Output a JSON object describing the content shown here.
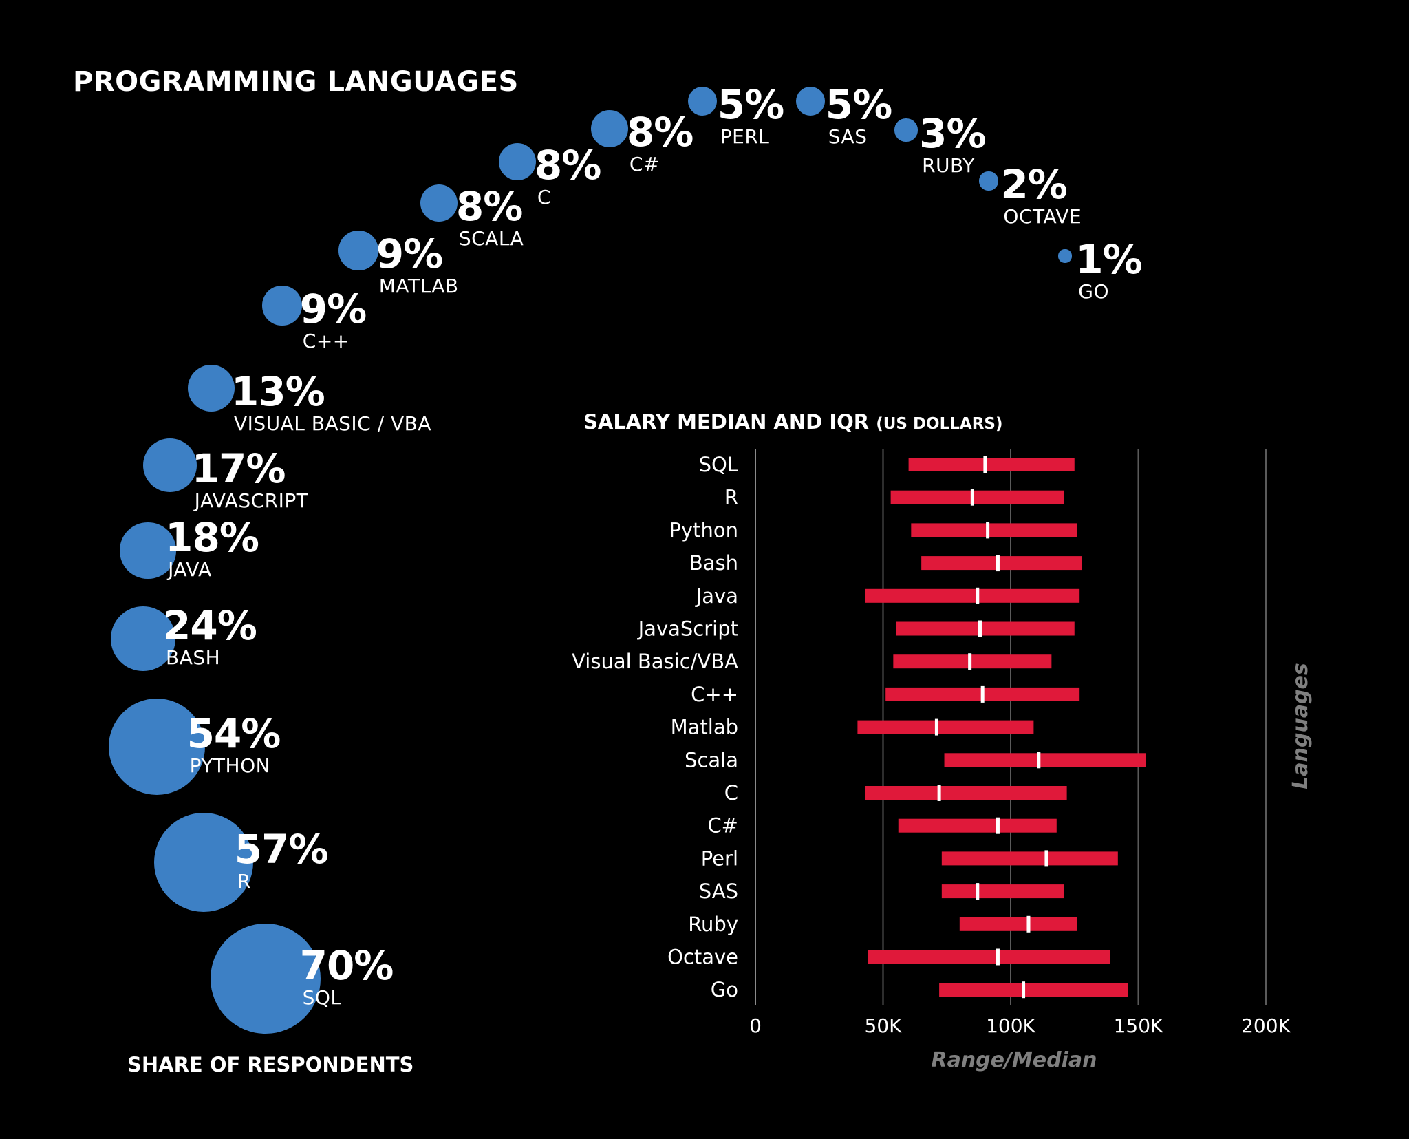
{
  "title": "PROGRAMMING LANGUAGES",
  "footer": "SHARE OF RESPONDENTS",
  "colors": {
    "background": "#000000",
    "bubble": "#3d80c5",
    "bar": "#e0193a",
    "median": "#ffffff",
    "grid": "#5a5a5a",
    "axis_title": "#808080"
  },
  "chart_data": [
    {
      "type": "bubble",
      "title": "PROGRAMMING LANGUAGES",
      "xlabel": "SHARE OF RESPONDENTS",
      "items": [
        {
          "language": "SQL",
          "value": 70,
          "pct_label": "70%"
        },
        {
          "language": "R",
          "value": 57,
          "pct_label": "57%"
        },
        {
          "language": "PYTHON",
          "value": 54,
          "pct_label": "54%"
        },
        {
          "language": "BASH",
          "value": 24,
          "pct_label": "24%"
        },
        {
          "language": "JAVA",
          "value": 18,
          "pct_label": "18%"
        },
        {
          "language": "JAVASCRIPT",
          "value": 17,
          "pct_label": "17%"
        },
        {
          "language": "VISUAL BASIC / VBA",
          "value": 13,
          "pct_label": "13%"
        },
        {
          "language": "C++",
          "value": 9,
          "pct_label": "9%"
        },
        {
          "language": "MATLAB",
          "value": 9,
          "pct_label": "9%"
        },
        {
          "language": "SCALA",
          "value": 8,
          "pct_label": "8%"
        },
        {
          "language": "C",
          "value": 8,
          "pct_label": "8%"
        },
        {
          "language": "C#",
          "value": 8,
          "pct_label": "8%"
        },
        {
          "language": "PERL",
          "value": 5,
          "pct_label": "5%"
        },
        {
          "language": "SAS",
          "value": 5,
          "pct_label": "5%"
        },
        {
          "language": "RUBY",
          "value": 3,
          "pct_label": "3%"
        },
        {
          "language": "OCTAVE",
          "value": 2,
          "pct_label": "2%"
        },
        {
          "language": "GO",
          "value": 1,
          "pct_label": "1%"
        }
      ]
    },
    {
      "type": "bar",
      "subtype": "range",
      "title": "SALARY MEDIAN AND IQR",
      "title_unit": "(US DOLLARS)",
      "xlabel": "Range/Median",
      "ylabel": "Languages",
      "xlim": [
        0,
        200000
      ],
      "xticks": [
        0,
        50000,
        100000,
        150000,
        200000
      ],
      "xtick_labels": [
        "0",
        "50K",
        "100K",
        "150K",
        "200K"
      ],
      "grid": true,
      "rows": [
        {
          "language": "SQL",
          "low": 60000,
          "median": 90000,
          "high": 125000
        },
        {
          "language": "R",
          "low": 53000,
          "median": 85000,
          "high": 121000
        },
        {
          "language": "Python",
          "low": 61000,
          "median": 91000,
          "high": 126000
        },
        {
          "language": "Bash",
          "low": 65000,
          "median": 95000,
          "high": 128000
        },
        {
          "language": "Java",
          "low": 43000,
          "median": 87000,
          "high": 127000
        },
        {
          "language": "JavaScript",
          "low": 55000,
          "median": 88000,
          "high": 125000
        },
        {
          "language": "Visual Basic/VBA",
          "low": 54000,
          "median": 84000,
          "high": 116000
        },
        {
          "language": "C++",
          "low": 51000,
          "median": 89000,
          "high": 127000
        },
        {
          "language": "Matlab",
          "low": 40000,
          "median": 71000,
          "high": 109000
        },
        {
          "language": "Scala",
          "low": 74000,
          "median": 111000,
          "high": 153000
        },
        {
          "language": "C",
          "low": 43000,
          "median": 72000,
          "high": 122000
        },
        {
          "language": "C#",
          "low": 56000,
          "median": 95000,
          "high": 118000
        },
        {
          "language": "Perl",
          "low": 73000,
          "median": 114000,
          "high": 142000
        },
        {
          "language": "SAS",
          "low": 73000,
          "median": 87000,
          "high": 121000
        },
        {
          "language": "Ruby",
          "low": 80000,
          "median": 107000,
          "high": 126000
        },
        {
          "language": "Octave",
          "low": 44000,
          "median": 95000,
          "high": 139000
        },
        {
          "language": "Go",
          "low": 72000,
          "median": 105000,
          "high": 146000
        }
      ]
    }
  ]
}
